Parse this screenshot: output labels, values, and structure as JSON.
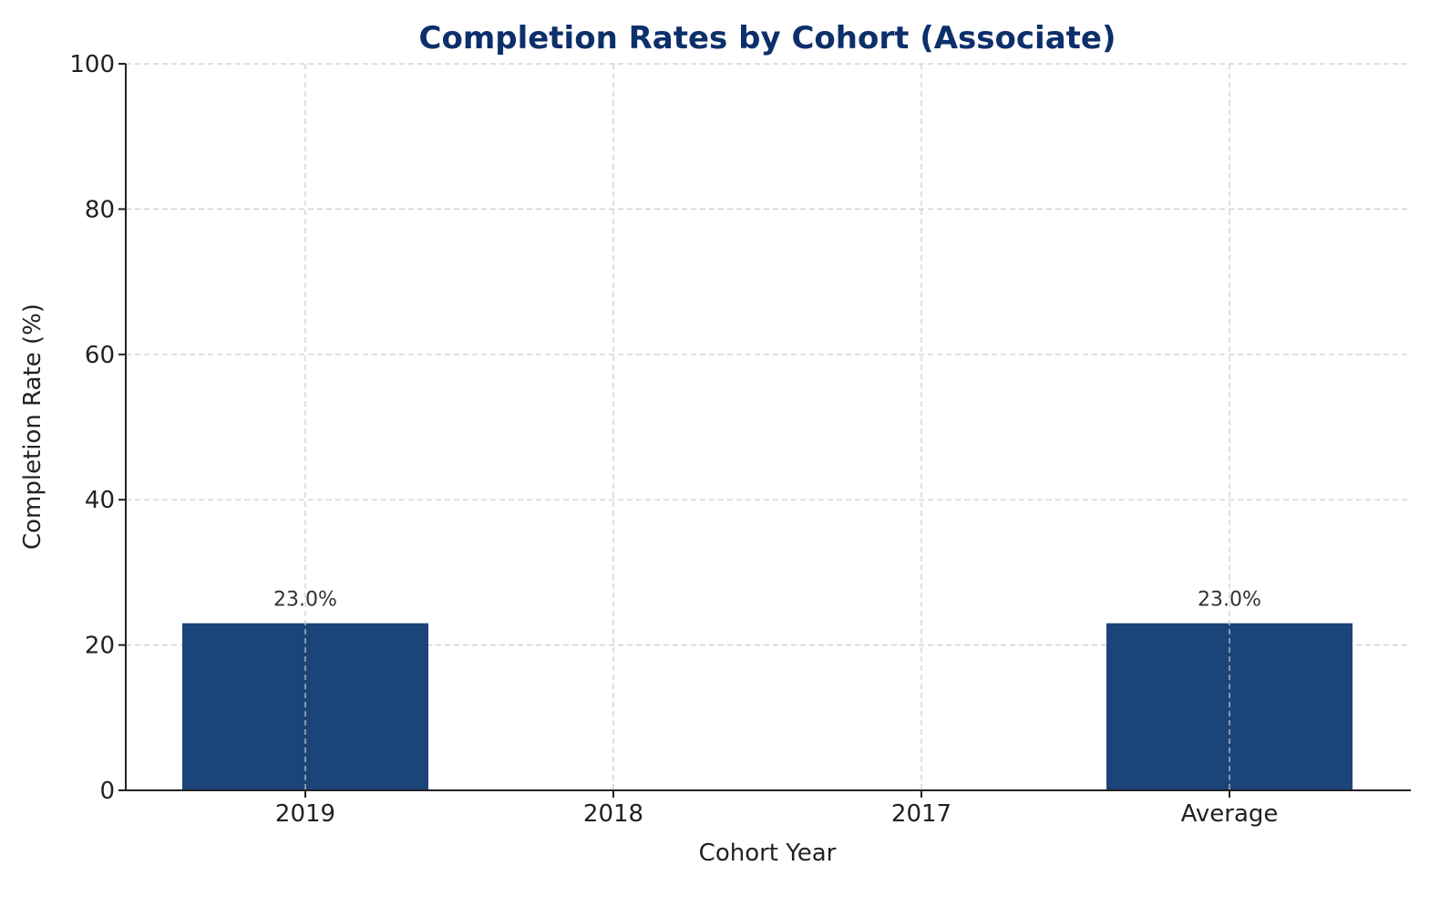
{
  "chart_data": {
    "type": "bar",
    "title": "Completion Rates by Cohort (Associate)",
    "xlabel": "Cohort Year",
    "ylabel": "Completion Rate (%)",
    "categories": [
      "2019",
      "2018",
      "2017",
      "Average"
    ],
    "values": [
      23.0,
      0,
      0,
      23.0
    ],
    "data_labels": [
      "23.0%",
      "",
      "",
      "23.0%"
    ],
    "ylim": [
      0,
      100
    ],
    "yticks": [
      0,
      20,
      40,
      60,
      80,
      100
    ],
    "grid": true,
    "legend": "none",
    "colors": {
      "bar": "#1b4479",
      "title": "#0d2f6b"
    }
  }
}
